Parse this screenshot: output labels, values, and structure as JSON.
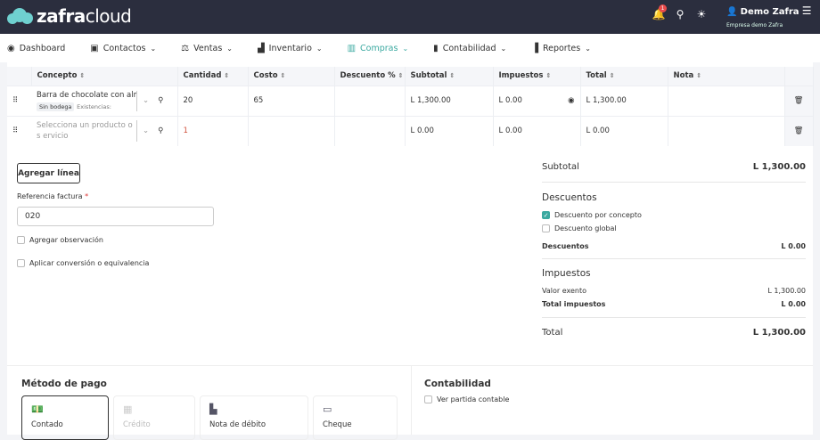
{
  "header": {
    "brand_bold": "zafra",
    "brand_light": "cloud",
    "notification_count": "1",
    "user_name": "Demo Zafra",
    "company": "Empresa demo Zafra"
  },
  "nav": [
    {
      "label": "Dashboard",
      "icon": "dashboard-icon"
    },
    {
      "label": "Contactos",
      "icon": "contacts-icon"
    },
    {
      "label": "Ventas",
      "icon": "sales-icon"
    },
    {
      "label": "Inventario",
      "icon": "inventory-icon"
    },
    {
      "label": "Compras",
      "icon": "store-icon",
      "active": true
    },
    {
      "label": "Contabilidad",
      "icon": "calculator-icon"
    },
    {
      "label": "Reportes",
      "icon": "chart-icon"
    }
  ],
  "table": {
    "headers": [
      "Concepto",
      "Cantidad",
      "Costo",
      "Descuento %",
      "Subtotal",
      "Impuestos",
      "Total",
      "Nota"
    ],
    "rows": [
      {
        "concepto": "Barra de chocolate con alme",
        "tag": "Sin bodega",
        "stock": "Existencias:",
        "cantidad": "20",
        "costo": "65",
        "descuento": "",
        "subtotal": "L 1,300.00",
        "impuestos": "L 0.00",
        "total": "L 1,300.00"
      },
      {
        "concepto": "Selecciona un producto o s ervicio",
        "cantidad": "1",
        "costo": "",
        "descuento": "",
        "subtotal": "L 0.00",
        "impuestos": "L 0.00",
        "total": "L 0.00"
      }
    ]
  },
  "form": {
    "add_line": "Agregar línea",
    "ref_label": "Referencia factura",
    "ref_required": "*",
    "ref_value": "020",
    "add_obs": "Agregar observación",
    "conversion": "Aplicar conversión o equivalencia"
  },
  "summary": {
    "subtotal_label": "Subtotal",
    "subtotal": "L 1,300.00",
    "discounts_title": "Descuentos",
    "disc_concept": "Descuento por concepto",
    "disc_global": "Descuento global",
    "discounts_label": "Descuentos",
    "discounts": "L 0.00",
    "taxes_title": "Impuestos",
    "exempt_label": "Valor exento",
    "exempt": "L 1,300.00",
    "total_tax_label": "Total impuestos",
    "total_tax": "L 0.00",
    "total_label": "Total",
    "total": "L 1,300.00"
  },
  "payment": {
    "title": "Método de pago",
    "methods": [
      "Contado",
      "Crédito",
      "Nota de débito",
      "Cheque"
    ]
  },
  "accounting": {
    "title": "Contabilidad",
    "view": "Ver partida contable"
  },
  "colors": {
    "header_bg": "#2b2e3e",
    "accent": "#3aa9a0"
  }
}
